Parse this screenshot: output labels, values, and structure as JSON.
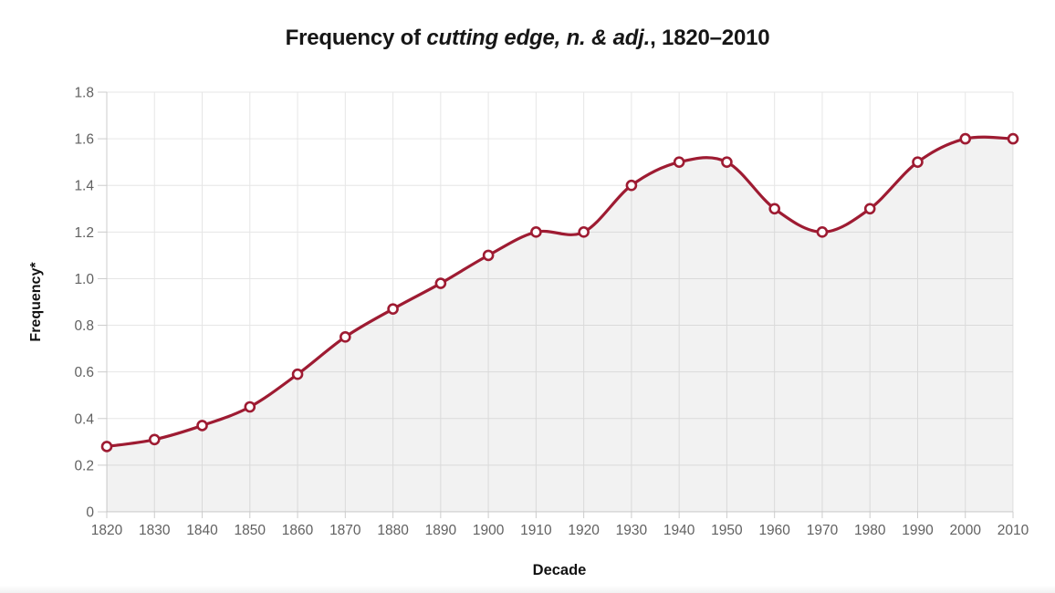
{
  "title": {
    "prefix": "Frequency of ",
    "term": "cutting edge, n. & adj.",
    "suffix": ", 1820–2010",
    "full": "Frequency of cutting edge, n. & adj., 1820–2010"
  },
  "chart_data": {
    "type": "line",
    "title": "Frequency of cutting edge, n. & adj., 1820–2010",
    "xlabel": "Decade",
    "ylabel": "Frequency*",
    "x": [
      1820,
      1830,
      1840,
      1850,
      1860,
      1870,
      1880,
      1890,
      1900,
      1910,
      1920,
      1930,
      1940,
      1950,
      1960,
      1970,
      1980,
      1990,
      2000,
      2010
    ],
    "values": [
      0.28,
      0.31,
      0.37,
      0.45,
      0.59,
      0.75,
      0.87,
      0.98,
      1.1,
      1.2,
      1.2,
      1.4,
      1.5,
      1.5,
      1.3,
      1.2,
      1.3,
      1.5,
      1.6,
      1.6
    ],
    "ylim": [
      0,
      1.8
    ],
    "yticks": [
      0,
      0.2,
      0.4,
      0.6,
      0.8,
      1.0,
      1.2,
      1.4,
      1.6,
      1.8
    ],
    "ytick_labels": [
      "0",
      "0.2",
      "0.4",
      "0.6",
      "0.8",
      "1.0",
      "1.2",
      "1.4",
      "1.6",
      "1.8"
    ],
    "xtick_labels": [
      "1820",
      "1830",
      "1840",
      "1850",
      "1860",
      "1870",
      "1880",
      "1890",
      "1900",
      "1910",
      "1920",
      "1930",
      "1940",
      "1950",
      "1960",
      "1970",
      "1980",
      "1990",
      "2000",
      "2010"
    ],
    "grid": true,
    "legend": false,
    "curve": "spline",
    "style": {
      "line_color": "#9e1b32",
      "marker": "open-circle",
      "marker_fill": "#ffffff",
      "area_fill": "rgba(0,0,0,0.05)",
      "grid_color": "#e6e6e6",
      "axis_color": "#cccccc",
      "tick_label_color": "#616161",
      "title_color": "#161616"
    }
  }
}
